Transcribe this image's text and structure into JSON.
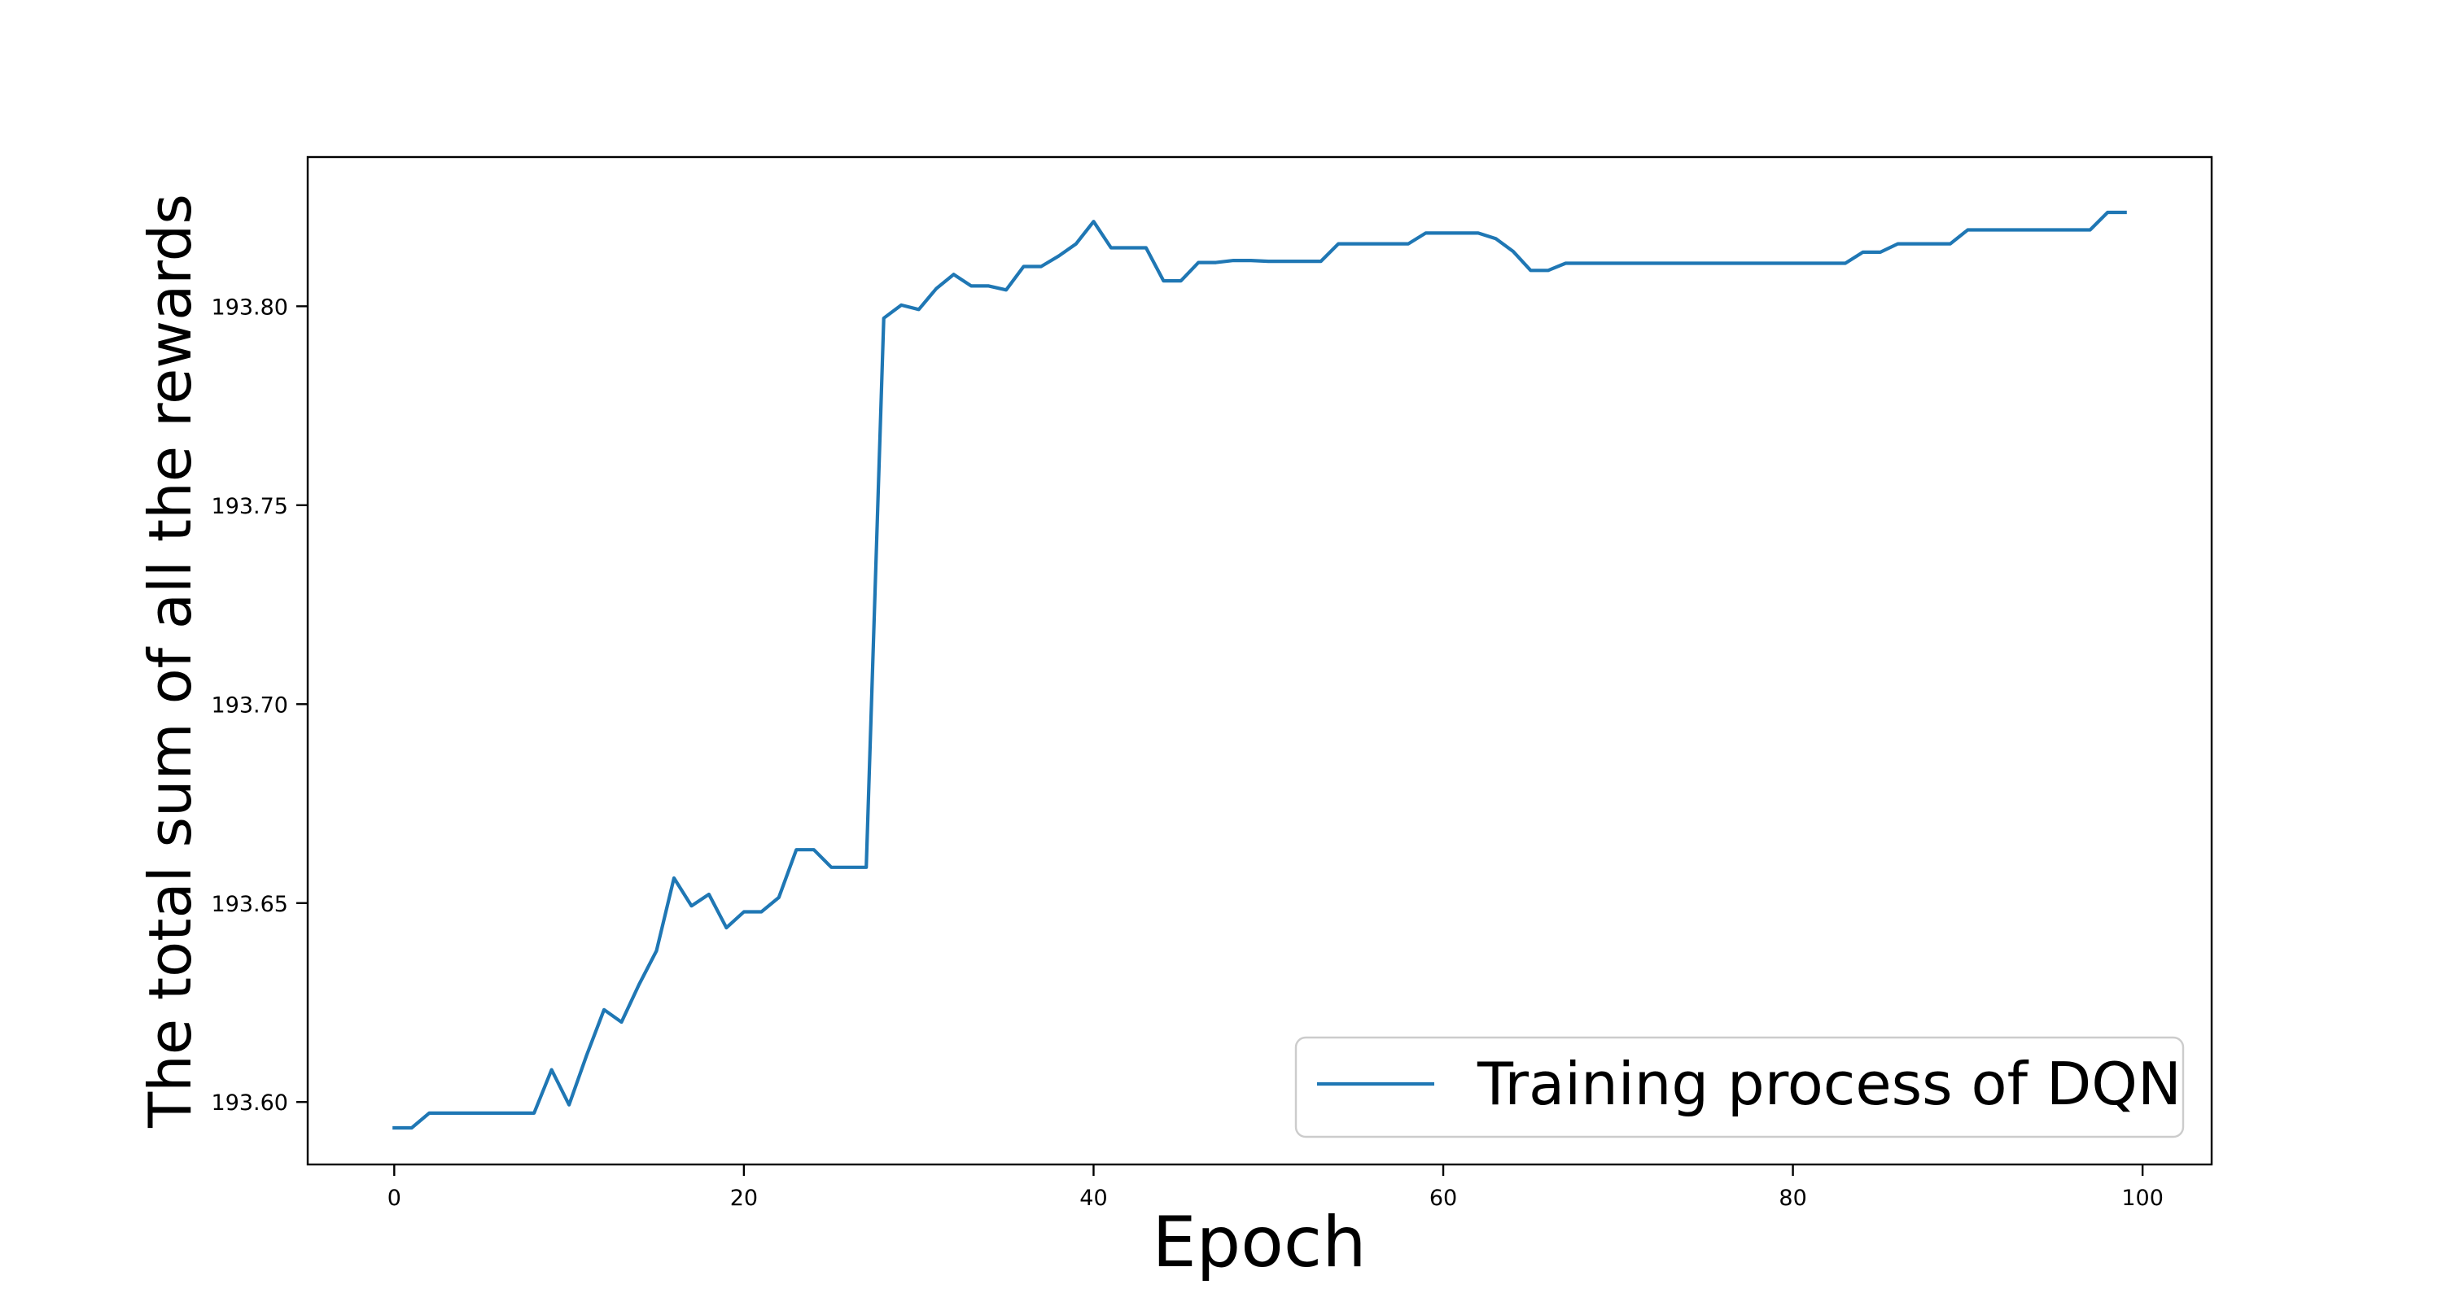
{
  "chart_data": {
    "type": "line",
    "title": "",
    "xlabel": "Epoch",
    "ylabel": "The total sum of all the rewards",
    "xlim": [
      -4.95,
      103.95
    ],
    "ylim": [
      193.5843,
      193.8375
    ],
    "xticks": [
      0,
      20,
      40,
      60,
      80,
      100
    ],
    "xtick_labels": [
      "0",
      "20",
      "40",
      "60",
      "80",
      "100"
    ],
    "yticks": [
      193.6,
      193.65,
      193.7,
      193.75,
      193.8
    ],
    "ytick_labels": [
      "193.60",
      "193.65",
      "193.70",
      "193.75",
      "193.80"
    ],
    "grid": false,
    "legend_position": "lower-right",
    "series": [
      {
        "name": "Training process of DQN",
        "color": "#1f77b4",
        "x": [
          0,
          1,
          2,
          3,
          4,
          5,
          6,
          7,
          8,
          9,
          10,
          11,
          12,
          13,
          14,
          15,
          16,
          17,
          18,
          19,
          20,
          21,
          22,
          23,
          24,
          25,
          26,
          27,
          28,
          29,
          30,
          31,
          32,
          33,
          34,
          35,
          36,
          37,
          38,
          39,
          40,
          41,
          42,
          43,
          44,
          45,
          46,
          47,
          48,
          49,
          50,
          51,
          52,
          53,
          54,
          55,
          56,
          57,
          58,
          59,
          60,
          61,
          62,
          63,
          64,
          65,
          66,
          67,
          68,
          69,
          70,
          71,
          72,
          73,
          74,
          75,
          76,
          77,
          78,
          79,
          80,
          81,
          82,
          83,
          84,
          85,
          86,
          87,
          88,
          89,
          90,
          91,
          92,
          93,
          94,
          95,
          96,
          97,
          98,
          99
        ],
        "y": [
          193.5935,
          193.5935,
          193.5972,
          193.5972,
          193.5972,
          193.5972,
          193.5972,
          193.5972,
          193.5972,
          193.6081,
          193.5993,
          193.6117,
          193.6232,
          193.6201,
          193.6295,
          193.638,
          193.6563,
          193.6493,
          193.6522,
          193.6438,
          193.6478,
          193.6478,
          193.6514,
          193.6634,
          193.6634,
          193.659,
          193.659,
          193.659,
          193.797,
          193.8003,
          193.7992,
          193.8044,
          193.808,
          193.8051,
          193.8051,
          193.8041,
          193.81,
          193.81,
          193.8126,
          193.8157,
          193.8213,
          193.8147,
          193.8147,
          193.8147,
          193.8064,
          193.8064,
          193.811,
          193.811,
          193.8115,
          193.8115,
          193.8113,
          193.8113,
          193.8113,
          193.8113,
          193.8157,
          193.8157,
          193.8157,
          193.8157,
          193.8157,
          193.8184,
          193.8184,
          193.8184,
          193.8184,
          193.817,
          193.8138,
          193.809,
          193.809,
          193.8108,
          193.8108,
          193.8108,
          193.8108,
          193.8108,
          193.8108,
          193.8108,
          193.8108,
          193.8108,
          193.8108,
          193.8108,
          193.8108,
          193.8108,
          193.8108,
          193.8108,
          193.8108,
          193.8108,
          193.8136,
          193.8136,
          193.8157,
          193.8157,
          193.8157,
          193.8157,
          193.8192,
          193.8192,
          193.8192,
          193.8192,
          193.8192,
          193.8192,
          193.8192,
          193.8192,
          193.8236,
          193.8236
        ]
      }
    ]
  }
}
